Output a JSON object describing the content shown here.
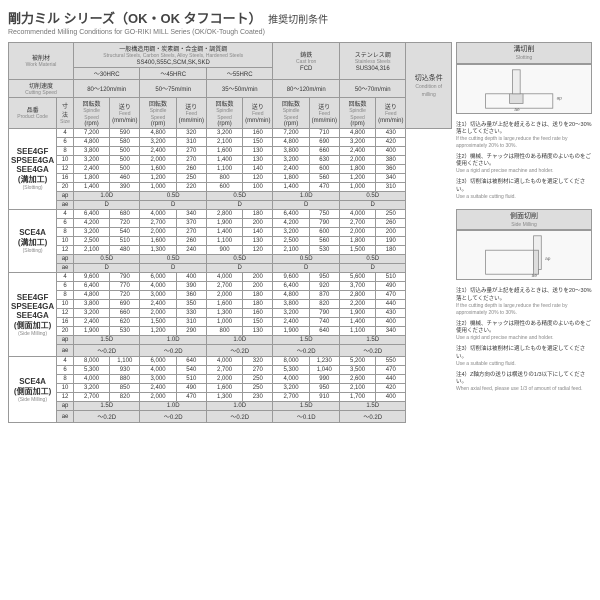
{
  "page": {
    "title_jp": "剛力ミル シリーズ（OK・OK タフコート）",
    "title_suffix": "推奨切削条件",
    "title_en": "Recommended Milling Conditions for GO-RIKI MILL Series (OK/OK-Tough Coated)"
  },
  "headers": {
    "work_material_jp": "被削材",
    "work_material_en": "Work Material",
    "cutting_speed_jp": "切削速度",
    "cutting_speed_en": "Cutting Speed",
    "product_code_jp": "品番",
    "product_code_en": "Product Code",
    "size_jp": "寸法",
    "size_en": "Size",
    "spindle_jp": "回転数",
    "spindle_en": "Spindle Speed",
    "feed_jp": "送り",
    "feed_en": "Feed",
    "rpm": "(rpm)",
    "mmmin": "(mm/min)",
    "condition_jp": "切込条件",
    "condition_en": "Condition of milling",
    "general_steel": "一般構造用鋼・炭素鋼・合金鋼・調質鋼",
    "general_steel_en": "Structural Steels, Carbon Steels, Alloy Steels, Hardened Steels",
    "general_steel_sub": "SS400,S55C,SCM,SK,SKD",
    "cast_iron_jp": "鋳鉄",
    "cast_iron_en": "Cast Iron",
    "cast_iron_sub": "FCD",
    "stainless_jp": "ステンレス鋼",
    "stainless_en": "Stainless Steels",
    "stainless_sub": "SUS304,316",
    "hrc30": "～30HRC",
    "hrc45": "～45HRC",
    "hrc55": "～55HRC",
    "range1": "80～120m/min",
    "range2": "50～75m/min",
    "range3": "35～50m/min",
    "range4": "80～120m/min",
    "range5": "50～70m/min"
  },
  "groups": [
    {
      "codes": [
        "SEE4GF",
        "SPSEE4GA",
        "SEE4GA",
        "(溝加工)"
      ],
      "codes_en": "(Slotting)",
      "rows": [
        {
          "sz": "4",
          "v": [
            "7,200",
            "590",
            "4,800",
            "320",
            "3,200",
            "160",
            "7,200",
            "710",
            "4,800",
            "430"
          ]
        },
        {
          "sz": "6",
          "v": [
            "4,800",
            "580",
            "3,200",
            "310",
            "2,100",
            "150",
            "4,800",
            "690",
            "3,200",
            "420"
          ]
        },
        {
          "sz": "8",
          "v": [
            "3,800",
            "500",
            "2,400",
            "270",
            "1,600",
            "130",
            "3,800",
            "660",
            "2,400",
            "400"
          ]
        },
        {
          "sz": "10",
          "v": [
            "3,200",
            "500",
            "2,000",
            "270",
            "1,400",
            "130",
            "3,200",
            "630",
            "2,000",
            "380"
          ]
        },
        {
          "sz": "12",
          "v": [
            "2,400",
            "500",
            "1,600",
            "260",
            "1,100",
            "140",
            "2,400",
            "600",
            "1,800",
            "360"
          ]
        },
        {
          "sz": "16",
          "v": [
            "1,800",
            "460",
            "1,200",
            "250",
            "800",
            "120",
            "1,800",
            "560",
            "1,200",
            "340"
          ]
        },
        {
          "sz": "20",
          "v": [
            "1,400",
            "390",
            "1,000",
            "220",
            "600",
            "100",
            "1,400",
            "470",
            "1,000",
            "310"
          ]
        }
      ],
      "ap": [
        "1.0D",
        "0.5D",
        "0.5D",
        "1.0D",
        "0.5D"
      ],
      "ae": [
        "D",
        "D",
        "D",
        "D",
        "D"
      ]
    },
    {
      "codes": [
        "SCE4A",
        "(溝加工)"
      ],
      "codes_en": "(Slotting)",
      "rows": [
        {
          "sz": "4",
          "v": [
            "6,400",
            "680",
            "4,000",
            "340",
            "2,800",
            "180",
            "6,400",
            "750",
            "4,000",
            "250"
          ]
        },
        {
          "sz": "6",
          "v": [
            "4,200",
            "720",
            "2,700",
            "370",
            "1,900",
            "200",
            "4,200",
            "790",
            "2,700",
            "260"
          ]
        },
        {
          "sz": "8",
          "v": [
            "3,200",
            "540",
            "2,000",
            "270",
            "1,400",
            "140",
            "3,200",
            "600",
            "2,000",
            "200"
          ]
        },
        {
          "sz": "10",
          "v": [
            "2,500",
            "510",
            "1,600",
            "260",
            "1,100",
            "130",
            "2,500",
            "560",
            "1,800",
            "190"
          ]
        },
        {
          "sz": "12",
          "v": [
            "2,100",
            "480",
            "1,300",
            "240",
            "900",
            "120",
            "2,100",
            "530",
            "1,500",
            "180"
          ]
        }
      ],
      "ap": [
        "0.5D",
        "0.5D",
        "0.5D",
        "0.5D",
        "0.5D"
      ],
      "ae": [
        "D",
        "D",
        "D",
        "D",
        "D"
      ]
    },
    {
      "codes": [
        "SEE4GF",
        "SPSEE4GA",
        "SEE4GA",
        "(側面加工)"
      ],
      "codes_en": "(Side Milling)",
      "rows": [
        {
          "sz": "4",
          "v": [
            "9,600",
            "790",
            "6,000",
            "400",
            "4,000",
            "200",
            "9,600",
            "950",
            "5,600",
            "510"
          ]
        },
        {
          "sz": "6",
          "v": [
            "6,400",
            "770",
            "4,000",
            "390",
            "2,700",
            "200",
            "6,400",
            "920",
            "3,700",
            "490"
          ]
        },
        {
          "sz": "8",
          "v": [
            "4,800",
            "720",
            "3,000",
            "360",
            "2,000",
            "180",
            "4,800",
            "870",
            "2,800",
            "470"
          ]
        },
        {
          "sz": "10",
          "v": [
            "3,800",
            "690",
            "2,400",
            "350",
            "1,600",
            "180",
            "3,800",
            "820",
            "2,200",
            "440"
          ]
        },
        {
          "sz": "12",
          "v": [
            "3,200",
            "660",
            "2,000",
            "330",
            "1,300",
            "160",
            "3,200",
            "790",
            "1,900",
            "430"
          ]
        },
        {
          "sz": "16",
          "v": [
            "2,400",
            "620",
            "1,500",
            "310",
            "1,000",
            "150",
            "2,400",
            "740",
            "1,400",
            "400"
          ]
        },
        {
          "sz": "20",
          "v": [
            "1,900",
            "530",
            "1,200",
            "290",
            "800",
            "130",
            "1,900",
            "640",
            "1,100",
            "340"
          ]
        }
      ],
      "ap": [
        "1.5D",
        "1.0D",
        "1.0D",
        "1.5D",
        "1.5D"
      ],
      "ae": [
        "～0.2D",
        "～0.2D",
        "～0.2D",
        "～0.2D",
        "～0.2D"
      ]
    },
    {
      "codes": [
        "SCE4A",
        "(側面加工)"
      ],
      "codes_en": "(Side Milling)",
      "rows": [
        {
          "sz": "4",
          "v": [
            "8,000",
            "1,100",
            "6,000",
            "640",
            "4,000",
            "320",
            "8,000",
            "1,230",
            "5,200",
            "550"
          ]
        },
        {
          "sz": "6",
          "v": [
            "5,300",
            "930",
            "4,000",
            "540",
            "2,700",
            "270",
            "5,300",
            "1,040",
            "3,500",
            "470"
          ]
        },
        {
          "sz": "8",
          "v": [
            "4,000",
            "880",
            "3,000",
            "510",
            "2,000",
            "250",
            "4,000",
            "990",
            "2,600",
            "440"
          ]
        },
        {
          "sz": "10",
          "v": [
            "3,200",
            "850",
            "2,400",
            "490",
            "1,600",
            "250",
            "3,200",
            "950",
            "2,100",
            "420"
          ]
        },
        {
          "sz": "12",
          "v": [
            "2,700",
            "820",
            "2,000",
            "470",
            "1,300",
            "230",
            "2,700",
            "910",
            "1,700",
            "400"
          ]
        }
      ],
      "ap": [
        "1.5D",
        "1.0D",
        "1.0D",
        "1.5D",
        "1.5D"
      ],
      "ae": [
        "～0.2D",
        "～0.2D",
        "～0.2D",
        "～0.1D",
        "～0.2D"
      ]
    }
  ],
  "notes": {
    "slot_title_jp": "溝切削",
    "slot_title_en": "Slotting",
    "side_title_jp": "側面切削",
    "side_title_en": "Side Milling",
    "n1_jp": "注1）切込み量が上記を超えるときは、送りを20～30%落としてください。",
    "n1_en": "If the cutting depth is large,reduce the feed rate by approximately 20% to 30%.",
    "n2_jp": "注2）機械、チャックは剛性のある精度のよいものをご使用ください。",
    "n2_en": "Use a rigid and precise machine and holder.",
    "n3_jp": "注3）切削油は被削材に適したものを選定してください。",
    "n3_en": "Use a suitable cutting fluid.",
    "n4_jp": "注4）Z軸方向の送りは横送りの1/3以下にしてください。",
    "n4_en": "When axial feed, please use 1/3 of amount of radial feed.",
    "ap_label": "ap",
    "ae_label": "ae"
  }
}
